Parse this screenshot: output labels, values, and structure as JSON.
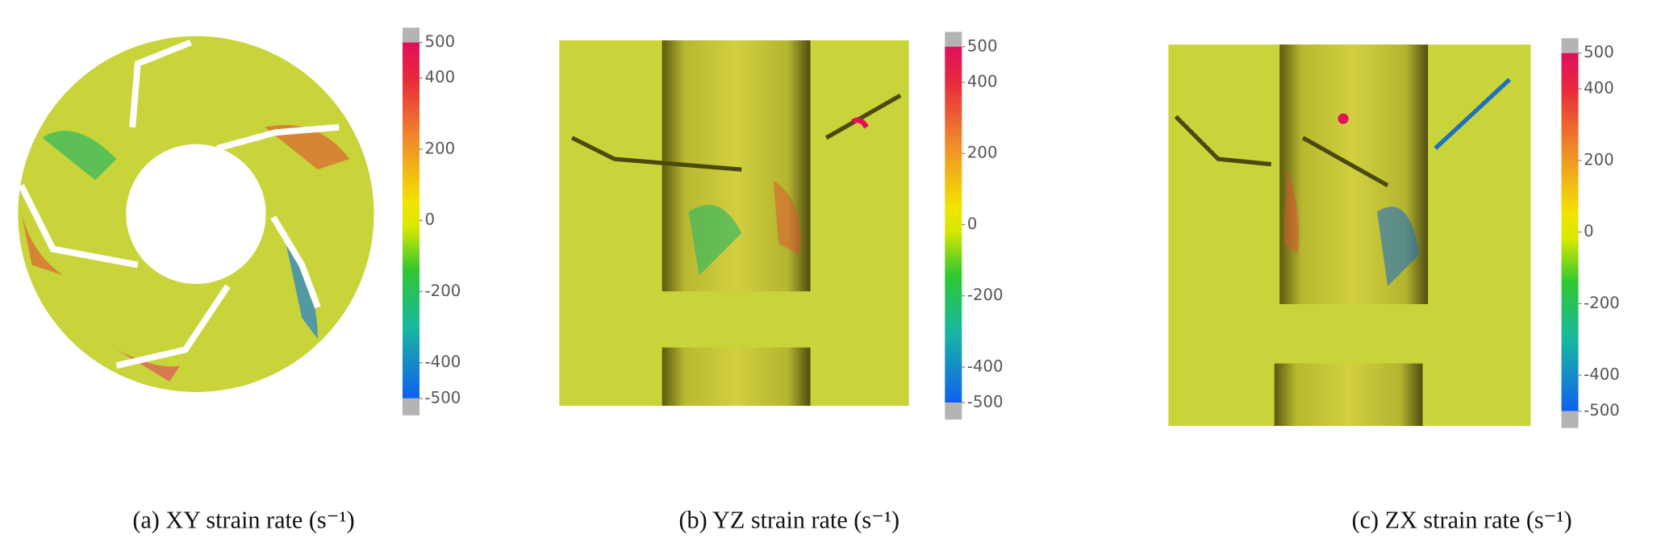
{
  "panels": [
    {
      "caption": "(a) XY strain rate (s⁻¹)",
      "colorbar_ticks": [
        500,
        400,
        200,
        0,
        -200,
        -400,
        -500
      ]
    },
    {
      "caption": "(b) YZ strain rate (s⁻¹)",
      "colorbar_ticks": [
        500,
        400,
        200,
        0,
        -200,
        -400,
        -500
      ]
    },
    {
      "caption": "(c) ZX strain rate (s⁻¹)",
      "colorbar_ticks": [
        500,
        400,
        200,
        0,
        -200,
        -400,
        -500
      ]
    }
  ]
}
